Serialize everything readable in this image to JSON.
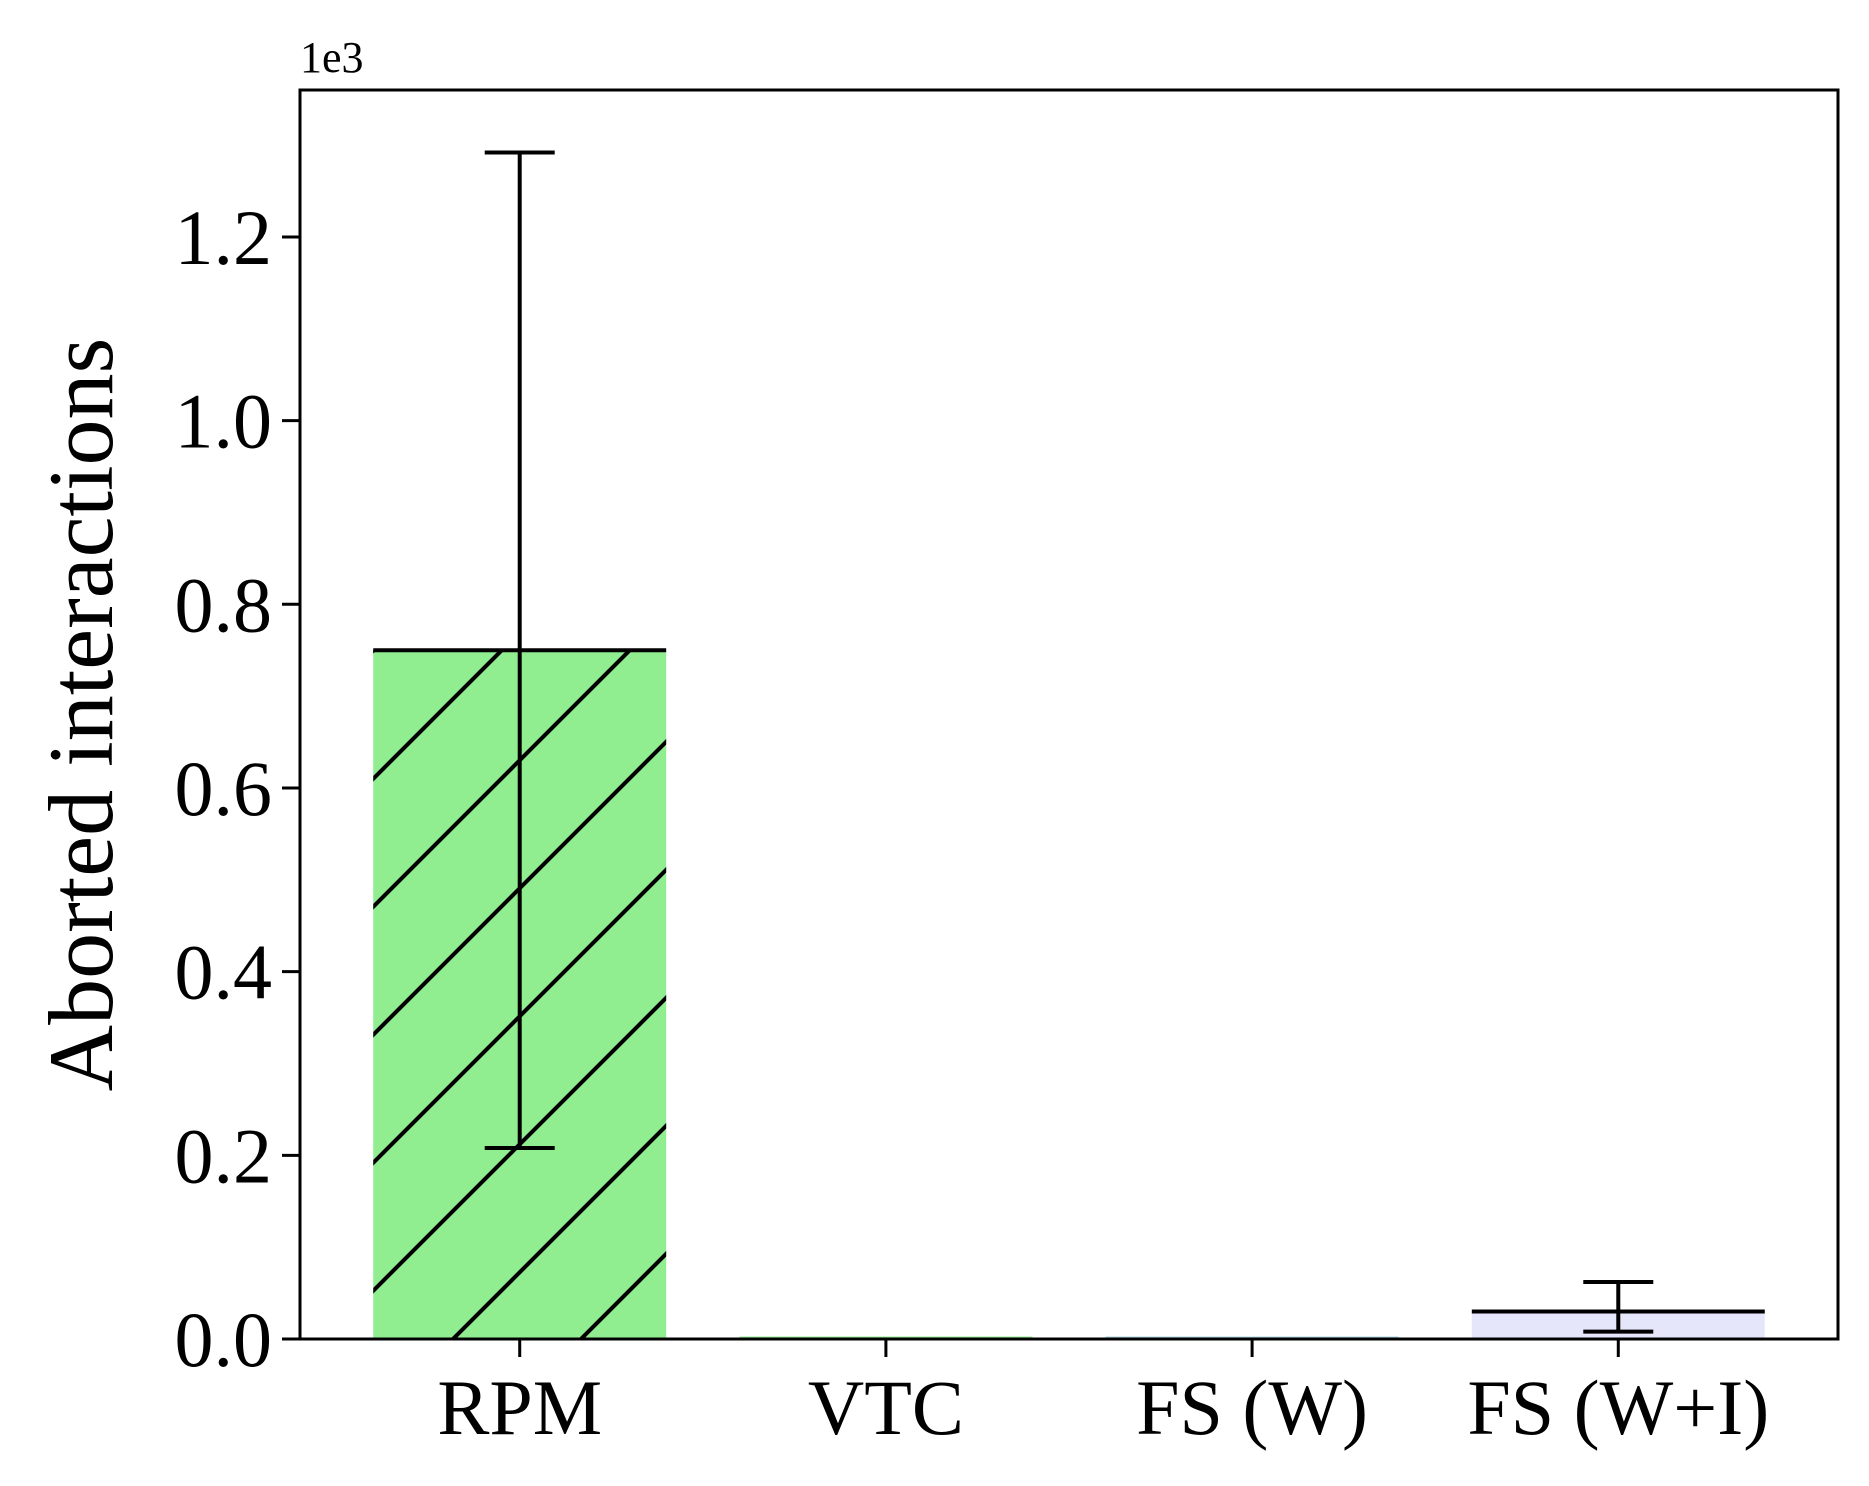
{
  "chart_data": {
    "type": "bar",
    "categories": [
      "RPM",
      "VTC",
      "FS (W)",
      "FS (W+I)"
    ],
    "values": [
      750,
      0,
      0,
      30
    ],
    "errors": [
      {
        "low": 208,
        "high": 1292
      },
      {
        "low": 0,
        "high": 0
      },
      {
        "low": 0,
        "high": 0
      },
      {
        "low": 8,
        "high": 62
      }
    ],
    "bar_colors": [
      "#90ee90",
      "#90ee90",
      "#add8e6",
      "#e6e6fa"
    ],
    "hatch": [
      "//",
      "",
      "",
      ""
    ],
    "ylabel": "Aborted interactions",
    "xlabel": "",
    "offset_text": "1e3",
    "ylim": [
      0,
      1360
    ],
    "yticks": [
      0,
      200,
      400,
      600,
      800,
      1000,
      1200
    ],
    "ytick_labels": [
      "0.0",
      "0.2",
      "0.4",
      "0.6",
      "0.8",
      "1.0",
      "1.2"
    ],
    "grid": false
  }
}
